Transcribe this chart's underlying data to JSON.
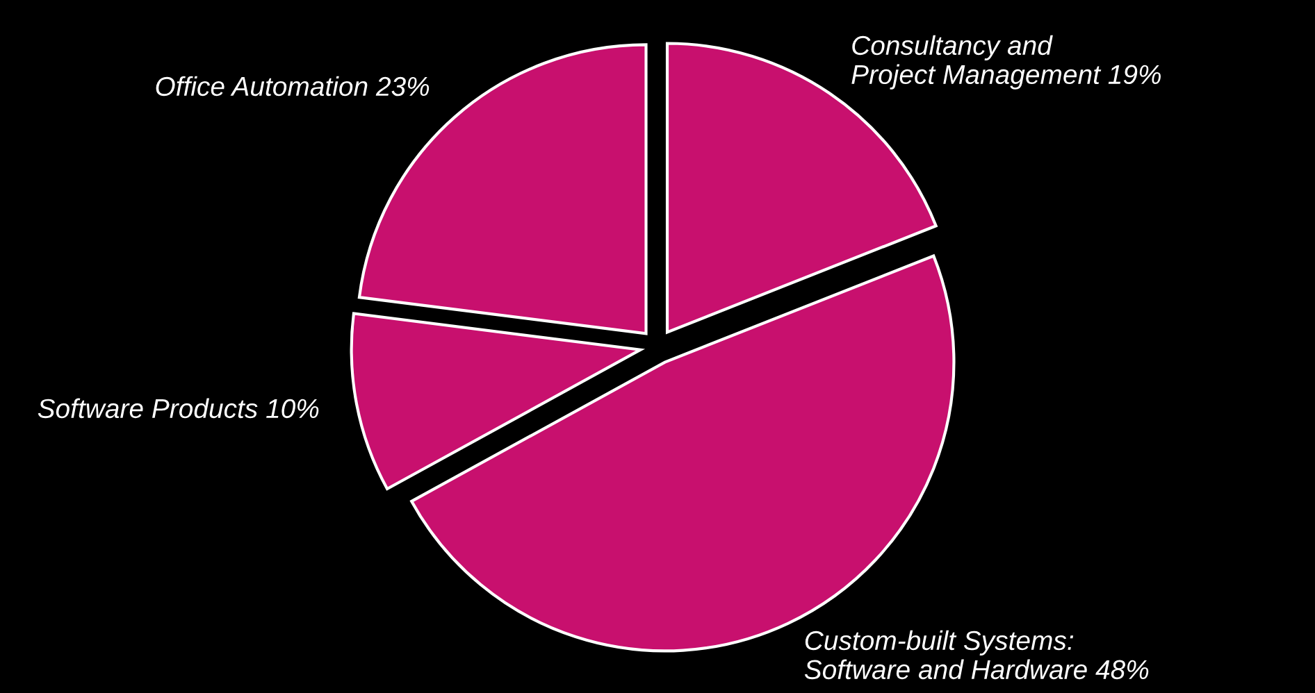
{
  "chart_data": {
    "type": "pie",
    "categories": [
      "Consultancy and\nProject Management 19%",
      "Custom-built Systems:\nSoftware and Hardware 48%",
      "Software Products 10%",
      "Office Automation 23%"
    ],
    "values": [
      19,
      48,
      10,
      23
    ],
    "colors": [
      "#c8106e",
      "#c8106e",
      "#c8106e",
      "#c8106e"
    ]
  }
}
